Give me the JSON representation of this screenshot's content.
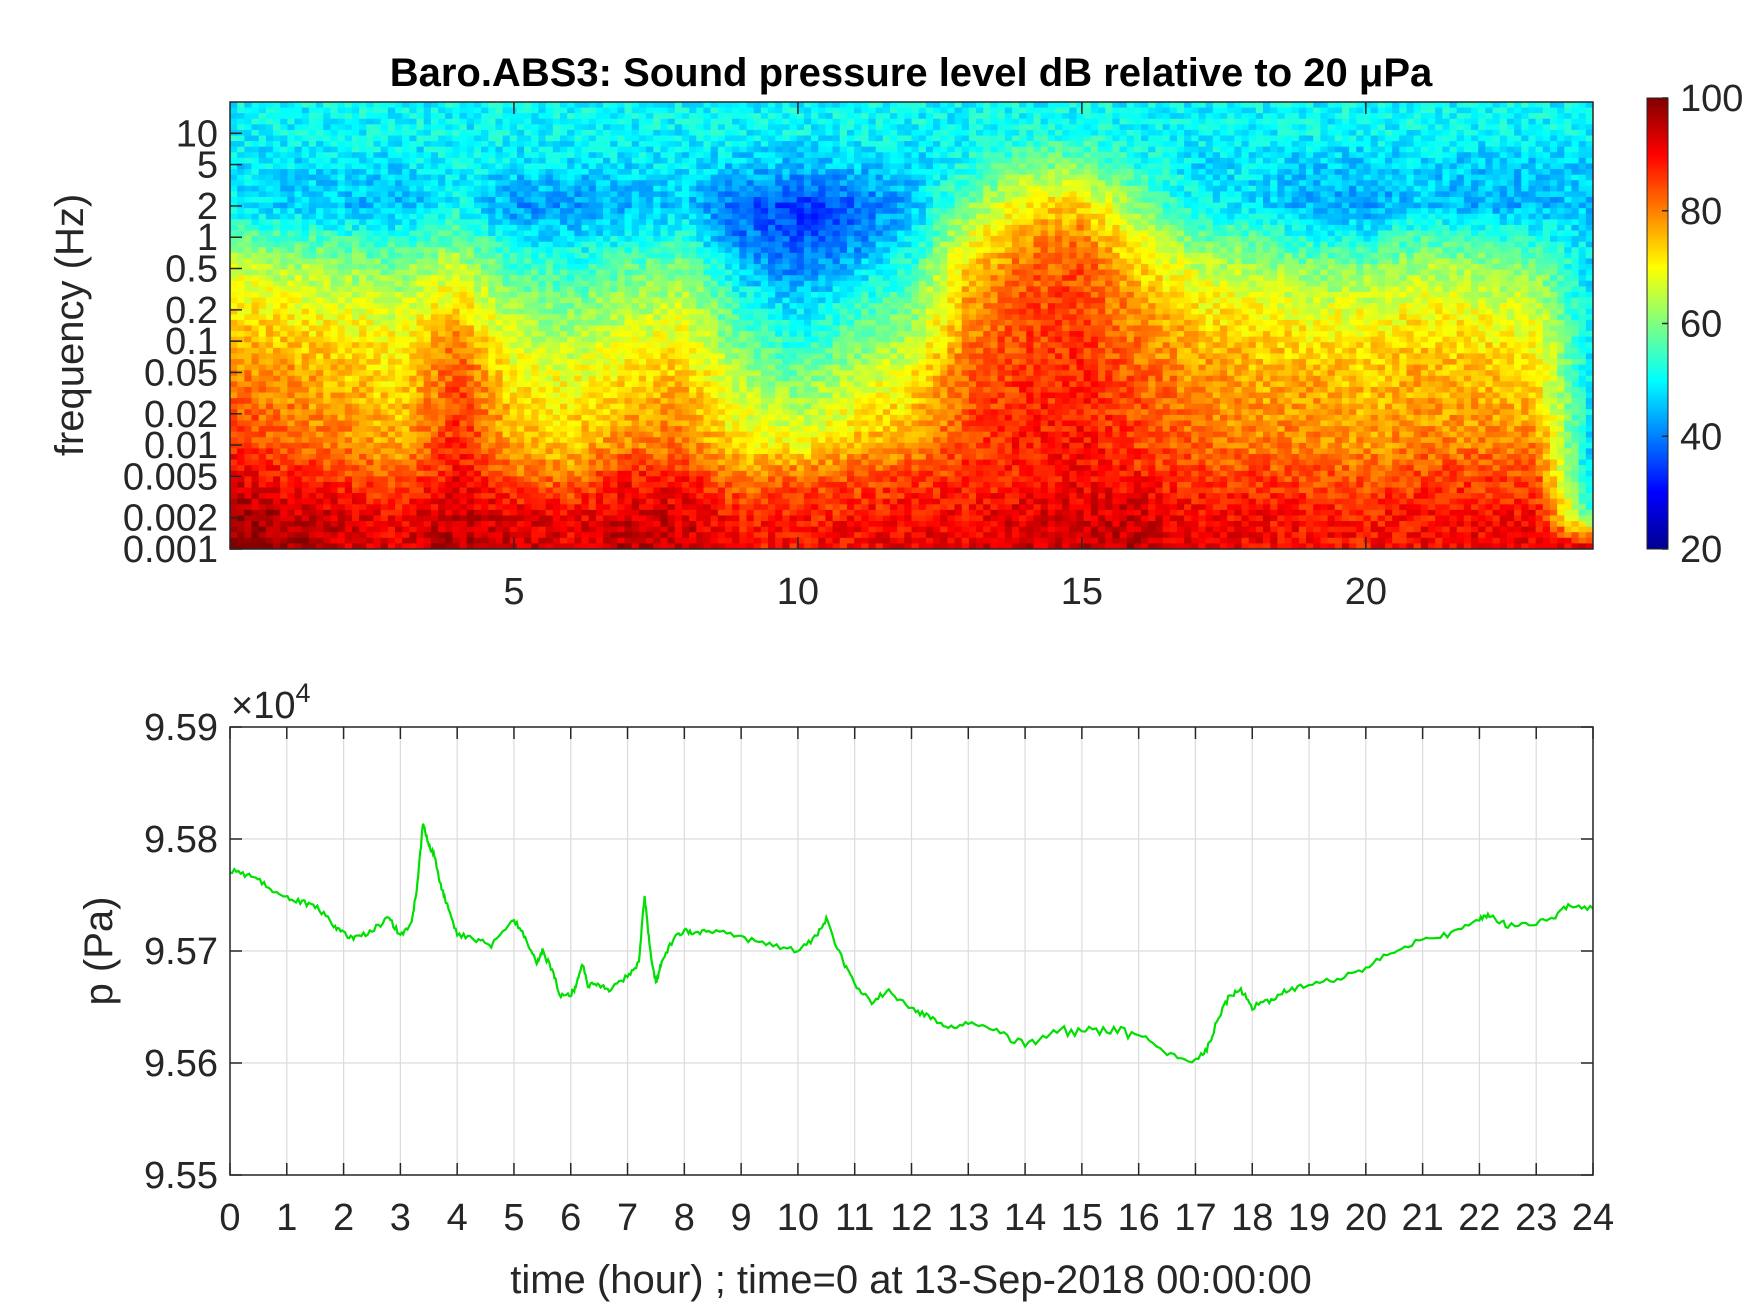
{
  "chart_data": [
    {
      "type": "heatmap",
      "title": "Baro.ABS3: Sound pressure level dB relative to 20 μPa",
      "xlabel": "",
      "ylabel": "frequency (Hz)",
      "xlim": [
        0,
        24
      ],
      "x_ticks": [
        5,
        10,
        15,
        20
      ],
      "y_scale": "log",
      "ylim": [
        0.001,
        20
      ],
      "y_ticks": [
        0.001,
        0.002,
        0.005,
        0.01,
        0.02,
        0.05,
        0.1,
        0.2,
        0.5,
        1,
        2,
        5,
        10
      ],
      "y_tick_labels": [
        "0.001",
        "0.002",
        "0.005",
        "0.01",
        "0.02",
        "0.05",
        "0.1",
        "0.2",
        "0.5",
        "1",
        "2",
        "5",
        "10"
      ],
      "colormap": "jet",
      "colorbar": {
        "min": 20,
        "max": 100,
        "ticks": [
          20,
          40,
          60,
          80,
          100
        ]
      },
      "x_hours": [
        0,
        1,
        2,
        3,
        4,
        5,
        6,
        7,
        8,
        9,
        10,
        11,
        12,
        13,
        14,
        15,
        16,
        17,
        18,
        19,
        20,
        21,
        22,
        23,
        24
      ],
      "y_freq_hz": [
        0.001,
        0.002,
        0.005,
        0.01,
        0.02,
        0.05,
        0.1,
        0.2,
        0.5,
        1,
        2,
        5,
        10,
        20
      ],
      "z_db": [
        [
          100,
          97,
          94,
          92,
          96,
          94,
          92,
          96,
          95,
          90,
          89,
          90,
          92,
          92,
          94,
          94,
          95,
          92,
          91,
          90,
          89,
          90,
          91,
          92,
          95
        ],
        [
          98,
          95,
          93,
          90,
          95,
          92,
          90,
          94,
          93,
          88,
          88,
          88,
          90,
          90,
          92,
          93,
          94,
          90,
          90,
          88,
          88,
          89,
          89,
          90,
          55
        ],
        [
          92,
          88,
          85,
          82,
          90,
          82,
          80,
          88,
          88,
          80,
          82,
          84,
          85,
          86,
          88,
          90,
          88,
          85,
          85,
          84,
          82,
          85,
          85,
          84,
          45
        ],
        [
          88,
          82,
          80,
          76,
          88,
          76,
          74,
          80,
          80,
          72,
          70,
          75,
          78,
          85,
          88,
          89,
          85,
          82,
          80,
          80,
          78,
          80,
          80,
          80,
          45
        ],
        [
          84,
          80,
          78,
          74,
          86,
          74,
          72,
          76,
          78,
          68,
          64,
          70,
          74,
          84,
          87,
          88,
          84,
          80,
          78,
          78,
          76,
          78,
          77,
          76,
          48
        ],
        [
          80,
          78,
          74,
          72,
          84,
          70,
          68,
          72,
          74,
          64,
          58,
          64,
          70,
          82,
          86,
          87,
          82,
          78,
          76,
          76,
          74,
          76,
          75,
          72,
          48
        ],
        [
          76,
          74,
          72,
          70,
          80,
          66,
          64,
          68,
          70,
          58,
          52,
          58,
          64,
          80,
          85,
          86,
          80,
          76,
          74,
          72,
          72,
          74,
          72,
          70,
          48
        ],
        [
          72,
          70,
          68,
          66,
          74,
          62,
          60,
          64,
          66,
          54,
          48,
          54,
          60,
          78,
          84,
          85,
          78,
          72,
          70,
          68,
          68,
          70,
          68,
          66,
          48
        ],
        [
          66,
          64,
          62,
          60,
          66,
          56,
          54,
          58,
          60,
          46,
          40,
          46,
          54,
          74,
          82,
          84,
          74,
          66,
          64,
          60,
          60,
          64,
          62,
          60,
          48
        ],
        [
          58,
          56,
          54,
          52,
          58,
          48,
          48,
          50,
          52,
          40,
          36,
          40,
          48,
          68,
          78,
          80,
          68,
          58,
          56,
          52,
          50,
          56,
          54,
          52,
          48
        ],
        [
          48,
          46,
          45,
          44,
          50,
          42,
          42,
          44,
          46,
          38,
          34,
          38,
          44,
          60,
          72,
          74,
          60,
          50,
          48,
          44,
          42,
          46,
          44,
          44,
          46
        ],
        [
          48,
          48,
          48,
          48,
          50,
          48,
          48,
          48,
          48,
          46,
          45,
          46,
          47,
          52,
          58,
          60,
          52,
          48,
          48,
          46,
          46,
          47,
          46,
          46,
          47
        ],
        [
          50,
          50,
          50,
          50,
          50,
          50,
          50,
          50,
          50,
          50,
          50,
          50,
          50,
          50,
          52,
          52,
          50,
          50,
          50,
          50,
          50,
          50,
          50,
          50,
          50
        ],
        [
          50,
          50,
          50,
          50,
          50,
          50,
          50,
          50,
          50,
          50,
          50,
          50,
          50,
          50,
          50,
          50,
          50,
          50,
          50,
          50,
          50,
          50,
          50,
          50,
          50
        ]
      ]
    },
    {
      "type": "line",
      "title": "",
      "xlabel": "time (hour) ; time=0 at 13-Sep-2018 00:00:00",
      "ylabel": "p (Pa)",
      "xlim": [
        0,
        24
      ],
      "ylim": [
        95500,
        95900
      ],
      "x_ticks": [
        0,
        1,
        2,
        3,
        4,
        5,
        6,
        7,
        8,
        9,
        10,
        11,
        12,
        13,
        14,
        15,
        16,
        17,
        18,
        19,
        20,
        21,
        22,
        23,
        24
      ],
      "y_ticks": [
        95500,
        95600,
        95700,
        95800,
        95900
      ],
      "y_tick_labels": [
        "9.55",
        "9.56",
        "9.57",
        "9.58",
        "9.59"
      ],
      "y_exponent_label": "×10",
      "y_exponent_power": "4",
      "grid": true,
      "color": "#00e000",
      "series": [
        {
          "x": [
            0,
            0.3,
            0.6,
            0.9,
            1.2,
            1.5,
            1.8,
            2.0,
            2.2,
            2.5,
            2.8,
            3.0,
            3.2,
            3.3,
            3.4,
            3.5,
            3.6,
            3.7,
            3.8,
            4.0,
            4.3,
            4.6,
            5.0,
            5.2,
            5.4,
            5.5,
            5.7,
            5.8,
            6.0,
            6.1,
            6.2,
            6.3,
            6.5,
            6.7,
            7.0,
            7.2,
            7.3,
            7.4,
            7.5,
            7.6,
            7.8,
            8.0,
            8.2,
            8.5,
            9.0,
            9.5,
            10.0,
            10.3,
            10.5,
            10.8,
            11.0,
            11.3,
            11.6,
            12.0,
            12.3,
            12.6,
            13.0,
            13.5,
            14.0,
            14.5,
            15.0,
            15.5,
            16.0,
            16.5,
            17.0,
            17.2,
            17.4,
            17.6,
            17.8,
            18.0,
            18.3,
            18.6,
            19.0,
            19.5,
            20.0,
            20.5,
            21.0,
            21.5,
            22.0,
            22.2,
            22.5,
            23.0,
            23.3,
            23.6,
            24.0
          ],
          "y": [
            95772,
            95768,
            95760,
            95750,
            95745,
            95740,
            95725,
            95715,
            95712,
            95718,
            95730,
            95713,
            95725,
            95760,
            95815,
            95795,
            95785,
            95760,
            95745,
            95715,
            95710,
            95705,
            95728,
            95712,
            95688,
            95700,
            95680,
            95660,
            95662,
            95668,
            95690,
            95670,
            95670,
            95665,
            95678,
            95690,
            95750,
            95700,
            95672,
            95690,
            95710,
            95718,
            95715,
            95718,
            95712,
            95705,
            95700,
            95712,
            95728,
            95690,
            95670,
            95655,
            95665,
            95648,
            95642,
            95632,
            95636,
            95630,
            95615,
            95628,
            95630,
            95630,
            95625,
            95608,
            95602,
            95612,
            95640,
            95660,
            95665,
            95650,
            95655,
            95665,
            95670,
            95675,
            95685,
            95700,
            95710,
            95715,
            95728,
            95732,
            95722,
            95725,
            95730,
            95742,
            95738
          ]
        }
      ]
    }
  ]
}
